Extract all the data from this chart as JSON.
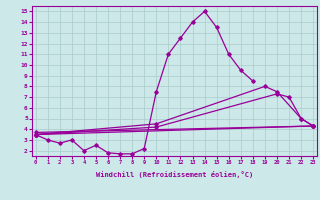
{
  "xlabel": "Windchill (Refroidissement éolien,°C)",
  "line_color": "#990099",
  "bg_color": "#cce8e8",
  "grid_color": "#aacccc",
  "xlim": [
    -0.3,
    23.3
  ],
  "ylim": [
    1.5,
    15.5
  ],
  "yticks": [
    2,
    3,
    4,
    5,
    6,
    7,
    8,
    9,
    10,
    11,
    12,
    13,
    14,
    15
  ],
  "xticks": [
    0,
    1,
    2,
    3,
    4,
    5,
    6,
    7,
    8,
    9,
    10,
    11,
    12,
    13,
    14,
    15,
    16,
    17,
    18,
    19,
    20,
    21,
    22,
    23
  ],
  "line1_x": [
    0,
    1,
    2,
    3,
    4,
    5,
    6,
    7,
    8,
    9,
    10,
    11,
    12,
    13,
    14,
    15,
    16,
    17,
    18
  ],
  "line1_y": [
    3.5,
    3.0,
    2.7,
    3.0,
    2.0,
    2.5,
    1.8,
    1.7,
    1.7,
    2.2,
    7.5,
    11.0,
    12.5,
    14.0,
    15.0,
    13.5,
    11.0,
    9.5,
    8.5
  ],
  "line2_x": [
    0,
    10,
    19,
    20,
    22,
    23
  ],
  "line2_y": [
    3.5,
    4.5,
    8.0,
    7.5,
    5.0,
    4.3
  ],
  "line3_x": [
    0,
    10,
    20,
    21,
    22,
    23
  ],
  "line3_y": [
    3.5,
    4.2,
    7.3,
    7.0,
    5.0,
    4.3
  ],
  "line4_x": [
    0,
    23
  ],
  "line4_y": [
    3.5,
    4.3
  ],
  "line5_x": [
    0,
    23
  ],
  "line5_y": [
    3.7,
    4.3
  ]
}
